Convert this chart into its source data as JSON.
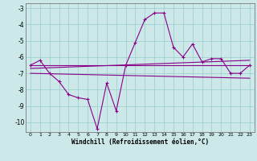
{
  "xlabel": "Windchill (Refroidissement éolien,°C)",
  "ylabel": "",
  "bg_color": "#cce8e8",
  "grid_color": "#99cccc",
  "line_color": "#880088",
  "xlim": [
    -0.5,
    23.5
  ],
  "ylim": [
    -10.6,
    -2.7
  ],
  "yticks": [
    -10,
    -9,
    -8,
    -7,
    -6,
    -5,
    -4,
    -3
  ],
  "xticks": [
    0,
    1,
    2,
    3,
    4,
    5,
    6,
    7,
    8,
    9,
    10,
    11,
    12,
    13,
    14,
    15,
    16,
    17,
    18,
    19,
    20,
    21,
    22,
    23
  ],
  "main_x": [
    0,
    1,
    2,
    3,
    4,
    5,
    6,
    7,
    8,
    9,
    10,
    11,
    12,
    13,
    14,
    15,
    16,
    17,
    18,
    19,
    20,
    21,
    22,
    23
  ],
  "main_y": [
    -6.5,
    -6.2,
    -7.0,
    -7.5,
    -8.3,
    -8.5,
    -8.6,
    -10.4,
    -7.6,
    -9.3,
    -6.5,
    -5.1,
    -3.7,
    -3.3,
    -3.3,
    -5.4,
    -6.0,
    -5.2,
    -6.3,
    -6.1,
    -6.1,
    -7.0,
    -7.0,
    -6.5
  ],
  "trend1_x": [
    0,
    23
  ],
  "trend1_y": [
    -6.5,
    -6.5
  ],
  "trend2_x": [
    0,
    23
  ],
  "trend2_y": [
    -6.7,
    -6.2
  ],
  "trend3_x": [
    0,
    23
  ],
  "trend3_y": [
    -7.0,
    -7.3
  ]
}
